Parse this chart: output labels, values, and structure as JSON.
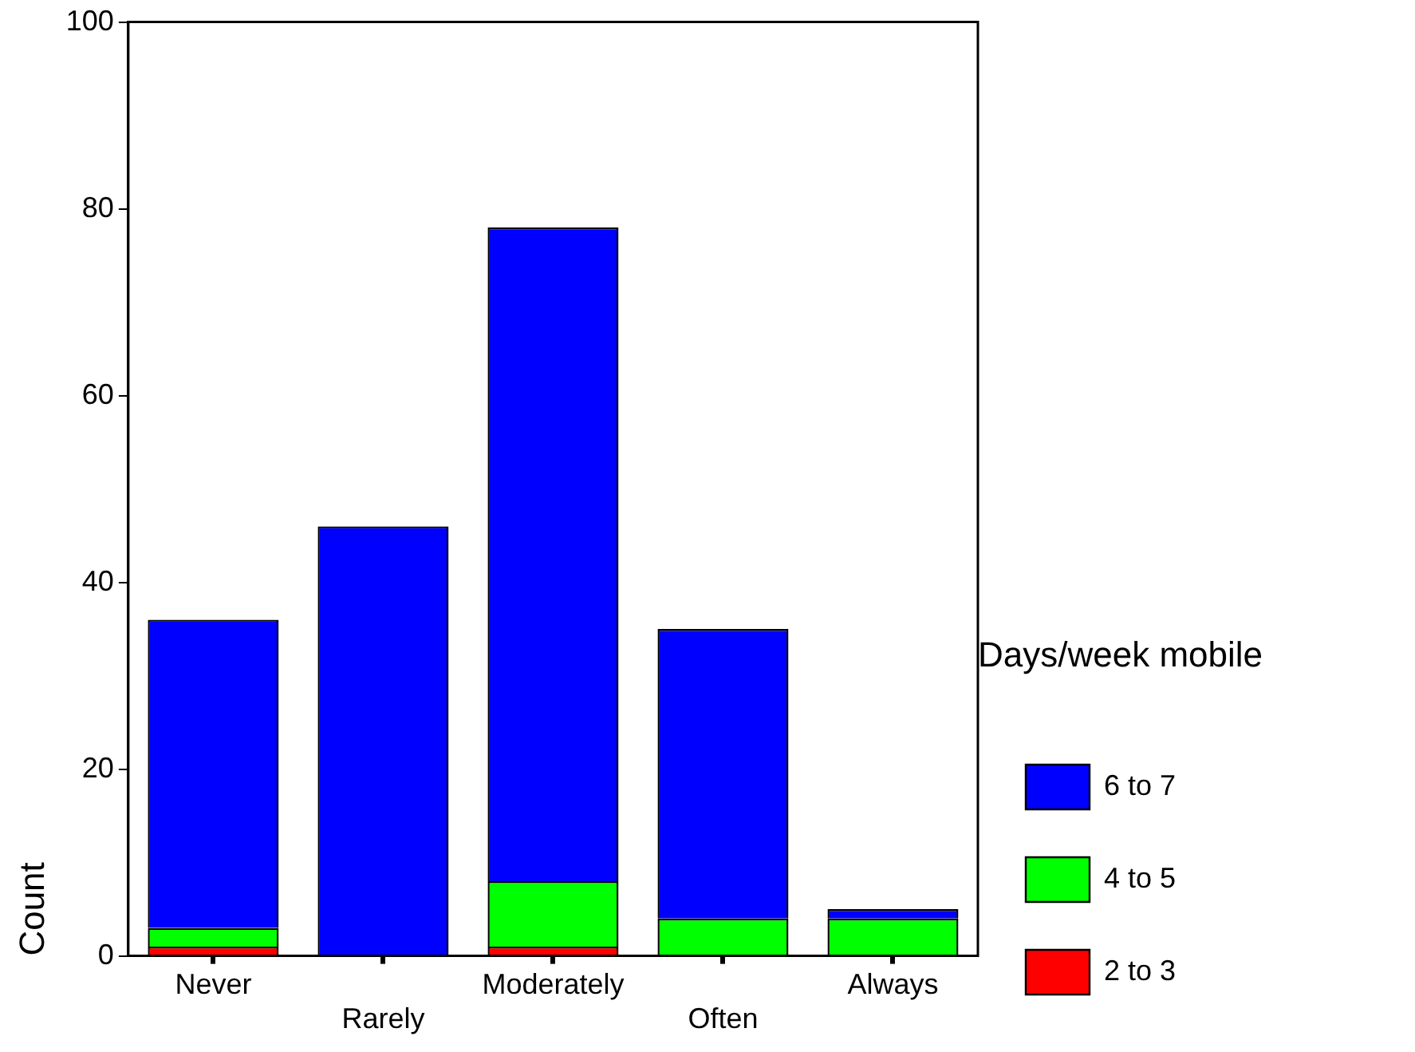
{
  "chart_data": {
    "type": "bar",
    "stacked": true,
    "ylabel": "Count",
    "legend_title": "Days/week mobile",
    "legend": "right",
    "categories": [
      "Never",
      "Rarely",
      "Moderately",
      "Often",
      "Always"
    ],
    "series": [
      {
        "name": "2 to 3",
        "color": "#ff0000",
        "values": [
          1,
          0,
          1,
          0,
          0
        ]
      },
      {
        "name": "4 to 5",
        "color": "#00ff00",
        "values": [
          2,
          0,
          7,
          4,
          4
        ]
      },
      {
        "name": "6 to 7",
        "color": "#0000ff",
        "values": [
          33,
          46,
          70,
          31,
          1
        ]
      }
    ],
    "ylim": [
      0,
      100
    ],
    "yticks": [
      0,
      20,
      40,
      60,
      80,
      100
    ],
    "grid": false
  }
}
